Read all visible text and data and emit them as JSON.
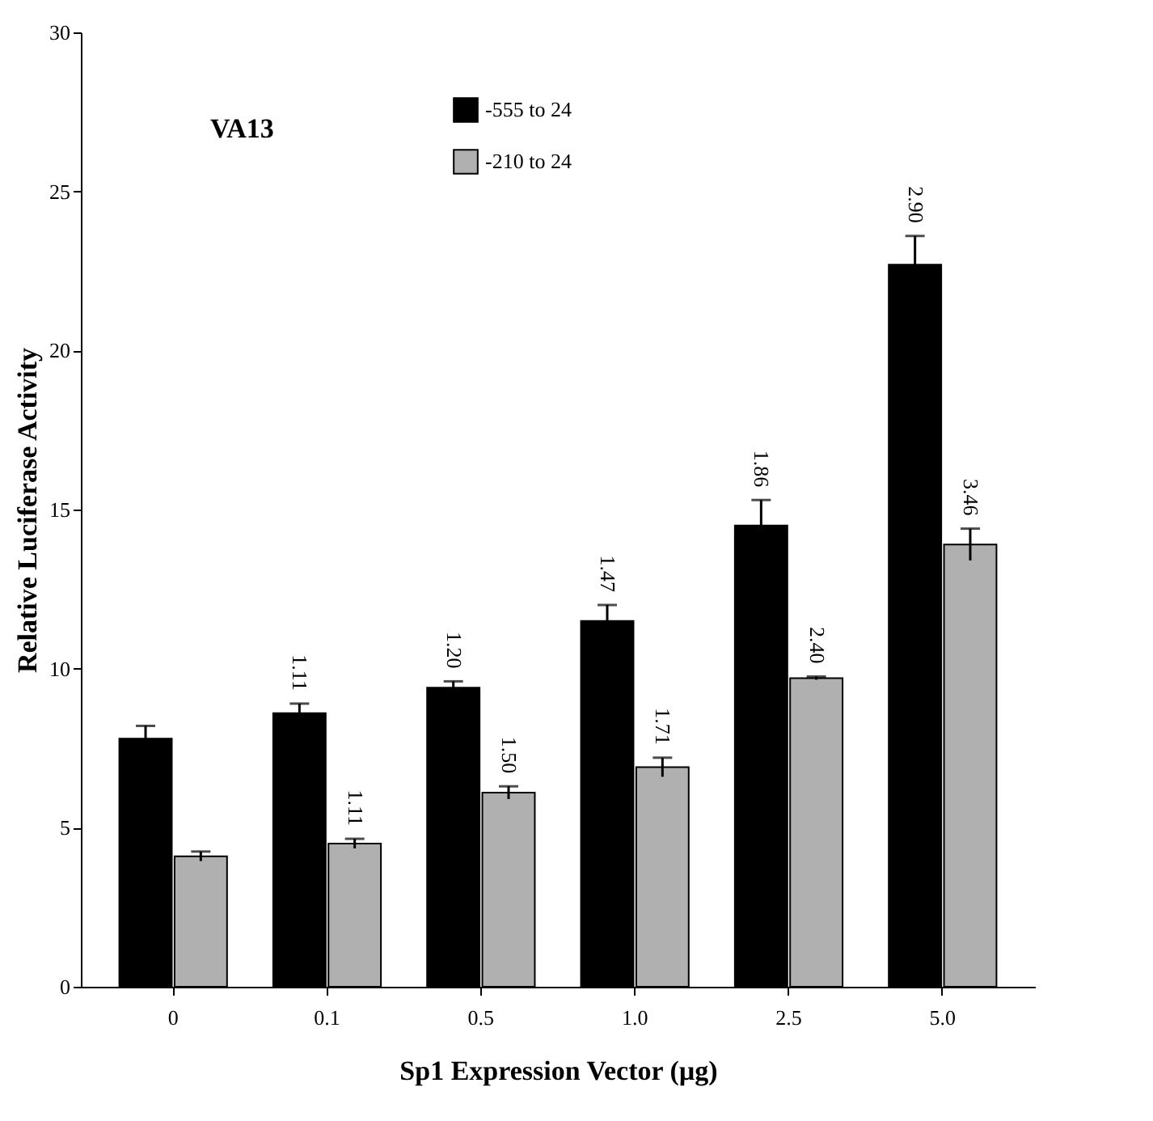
{
  "chart_data": {
    "type": "bar",
    "xlabel": "Sp1 Expression Vector (µg)",
    "ylabel": "Relative Luciferase Activity",
    "annotations": [
      "VA13",
      {
        "text": "1.11",
        "x": "0.1",
        "y": 8.6
      },
      {
        "text": "1.20",
        "x": "0.5",
        "y": 9.4
      },
      {
        "text": "1.47",
        "x": "1.0",
        "y": 11.5
      },
      {
        "text": "1.86",
        "x": "2.5",
        "y": 14.5
      },
      {
        "text": "2.90",
        "x": "5.0",
        "y": 22.7
      },
      {
        "text": "1.11",
        "x": "0.1",
        "y": 4.5
      },
      {
        "text": "1.50",
        "x": "0.5",
        "y": 6.1
      },
      {
        "text": "1.71",
        "x": "1.0",
        "y": 6.9
      },
      {
        "text": "2.40",
        "x": "2.5",
        "y": 9.7
      },
      {
        "text": "3.46",
        "x": "5.0",
        "y": 13.9
      }
    ],
    "categories": [
      "0",
      "0.1",
      "0.5",
      "1.0",
      "2.5",
      "5.0"
    ],
    "series": [
      {
        "name": "-555 to 24",
        "color": "#000000",
        "values": [
          7.8,
          8.6,
          9.4,
          11.5,
          14.5,
          22.7
        ],
        "errors": [
          0.4,
          0.3,
          0.2,
          0.5,
          0.8,
          0.9
        ]
      },
      {
        "name": "-210 to 24",
        "color": "#b0b0b0",
        "values": [
          4.1,
          4.5,
          6.1,
          6.9,
          9.7,
          13.9
        ],
        "errors": [
          0.15,
          0.15,
          0.2,
          0.3,
          0.05,
          0.5
        ]
      }
    ],
    "ylim": [
      0,
      30
    ],
    "yticks": [
      0,
      5,
      10,
      15,
      20,
      25,
      30
    ],
    "grid": false,
    "legend": "top"
  }
}
